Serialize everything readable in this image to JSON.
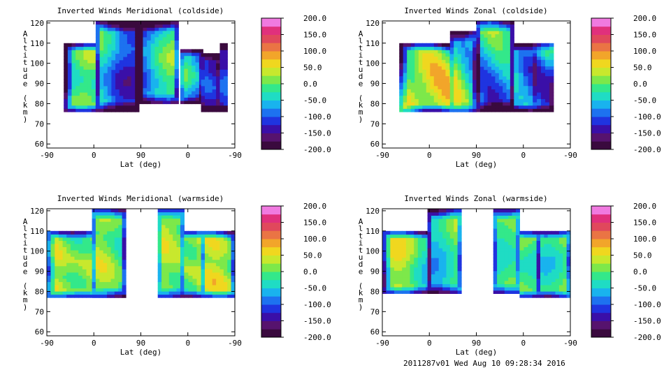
{
  "chart_data": [
    {
      "type": "heatmap",
      "title": "Inverted Winds Meridional (coldside)",
      "xlabel": "Lat (deg)",
      "ylabel": "Altitude (km)",
      "x_ticks": [
        "-90",
        "0",
        "90",
        "0",
        "-90"
      ],
      "y_ticks": [
        "60",
        "70",
        "80",
        "90",
        "100",
        "110",
        "120"
      ],
      "ylim": [
        58,
        121
      ],
      "colorbar_labels": [
        "200.0",
        "150.0",
        "100.0",
        "50.0",
        "0.0",
        "-50.0",
        "-100.0",
        "-150.0",
        "-200.0"
      ],
      "colorbar_range": [
        -200,
        200
      ]
    },
    {
      "type": "heatmap",
      "title": "Inverted Winds Zonal (coldside)",
      "xlabel": "Lat (deg)",
      "ylabel": "Altitude (km)",
      "x_ticks": [
        "-90",
        "0",
        "90",
        "0",
        "-90"
      ],
      "y_ticks": [
        "60",
        "70",
        "80",
        "90",
        "100",
        "110",
        "120"
      ],
      "ylim": [
        58,
        121
      ],
      "colorbar_labels": [
        "200.0",
        "150.0",
        "100.0",
        "50.0",
        "0.0",
        "-50.0",
        "-100.0",
        "-150.0",
        "-200.0"
      ],
      "colorbar_range": [
        -200,
        200
      ]
    },
    {
      "type": "heatmap",
      "title": "Inverted Winds Meridional (warmside)",
      "xlabel": "Lat (deg)",
      "ylabel": "Altitude (km)",
      "x_ticks": [
        "-90",
        "0",
        "90",
        "0",
        "-90"
      ],
      "y_ticks": [
        "60",
        "70",
        "80",
        "90",
        "100",
        "110",
        "120"
      ],
      "ylim": [
        58,
        121
      ],
      "colorbar_labels": [
        "200.0",
        "150.0",
        "100.0",
        "50.0",
        "0.0",
        "-50.0",
        "-100.0",
        "-150.0",
        "-200.0"
      ],
      "colorbar_range": [
        -200,
        200
      ]
    },
    {
      "type": "heatmap",
      "title": "Inverted Winds Zonal (warmside)",
      "xlabel": "Lat (deg)",
      "ylabel": "Altitude (km)",
      "x_ticks": [
        "-90",
        "0",
        "90",
        "0",
        "-90"
      ],
      "y_ticks": [
        "60",
        "70",
        "80",
        "90",
        "100",
        "110",
        "120"
      ],
      "ylim": [
        58,
        121
      ],
      "colorbar_labels": [
        "200.0",
        "150.0",
        "100.0",
        "50.0",
        "0.0",
        "-50.0",
        "-100.0",
        "-150.0",
        "-200.0"
      ],
      "colorbar_range": [
        -200,
        200
      ]
    }
  ],
  "colormap": [
    "#3a0a3e",
    "#56136e",
    "#3a0fa8",
    "#1f34e0",
    "#1d72f0",
    "#19b3ee",
    "#1fdcc4",
    "#33e88a",
    "#7de84a",
    "#c8e82d",
    "#f0d71f",
    "#f2a52a",
    "#ea7444",
    "#e0485c",
    "#e0307c",
    "#f07ae0"
  ],
  "footer": "2011287v01 Wed Aug 10 09:28:34 2016"
}
